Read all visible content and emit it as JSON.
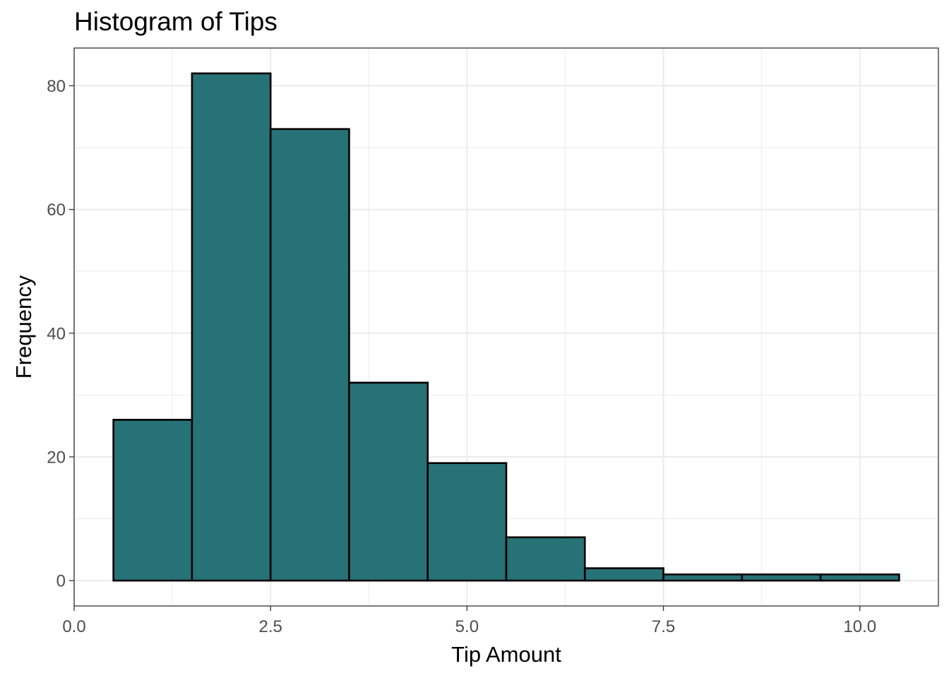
{
  "chart_data": {
    "type": "bar",
    "title": "Histogram of Tips",
    "xlabel": "Tip Amount",
    "ylabel": "Frequency",
    "bins": [
      {
        "x0": 0.5,
        "x1": 1.5,
        "count": 26
      },
      {
        "x0": 1.5,
        "x1": 2.5,
        "count": 82
      },
      {
        "x0": 2.5,
        "x1": 3.5,
        "count": 73
      },
      {
        "x0": 3.5,
        "x1": 4.5,
        "count": 32
      },
      {
        "x0": 4.5,
        "x1": 5.5,
        "count": 19
      },
      {
        "x0": 5.5,
        "x1": 6.5,
        "count": 7
      },
      {
        "x0": 6.5,
        "x1": 7.5,
        "count": 2
      },
      {
        "x0": 7.5,
        "x1": 8.5,
        "count": 1
      },
      {
        "x0": 8.5,
        "x1": 9.5,
        "count": 1
      },
      {
        "x0": 9.5,
        "x1": 10.5,
        "count": 1
      }
    ],
    "xlim": [
      0,
      11
    ],
    "ylim": [
      -4.1,
      86.1
    ],
    "x_ticks": [
      0,
      2.5,
      5,
      7.5,
      10
    ],
    "x_tick_labels": [
      "0.0",
      "2.5",
      "5.0",
      "7.5",
      "10.0"
    ],
    "y_ticks": [
      0,
      20,
      40,
      60,
      80
    ],
    "y_tick_labels": [
      "0",
      "20",
      "40",
      "60",
      "80"
    ],
    "grid": true,
    "colors": {
      "fill": "#277277",
      "outline": "#000000",
      "grid": "#ebebeb"
    }
  }
}
